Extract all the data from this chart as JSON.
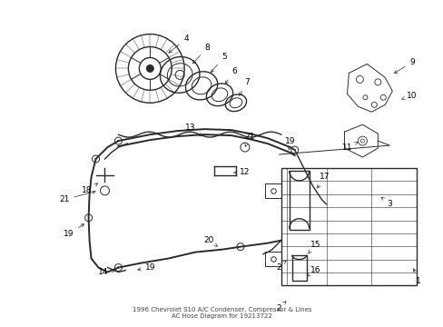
{
  "bg_color": "#ffffff",
  "line_color": "#2a2a2a",
  "label_color": "#000000",
  "figsize": [
    4.89,
    3.6
  ],
  "dpi": 100,
  "title": "1996 Chevrolet S10 A/C Condenser, Compressor & Lines\nAC Hose Diagram for 19213722"
}
